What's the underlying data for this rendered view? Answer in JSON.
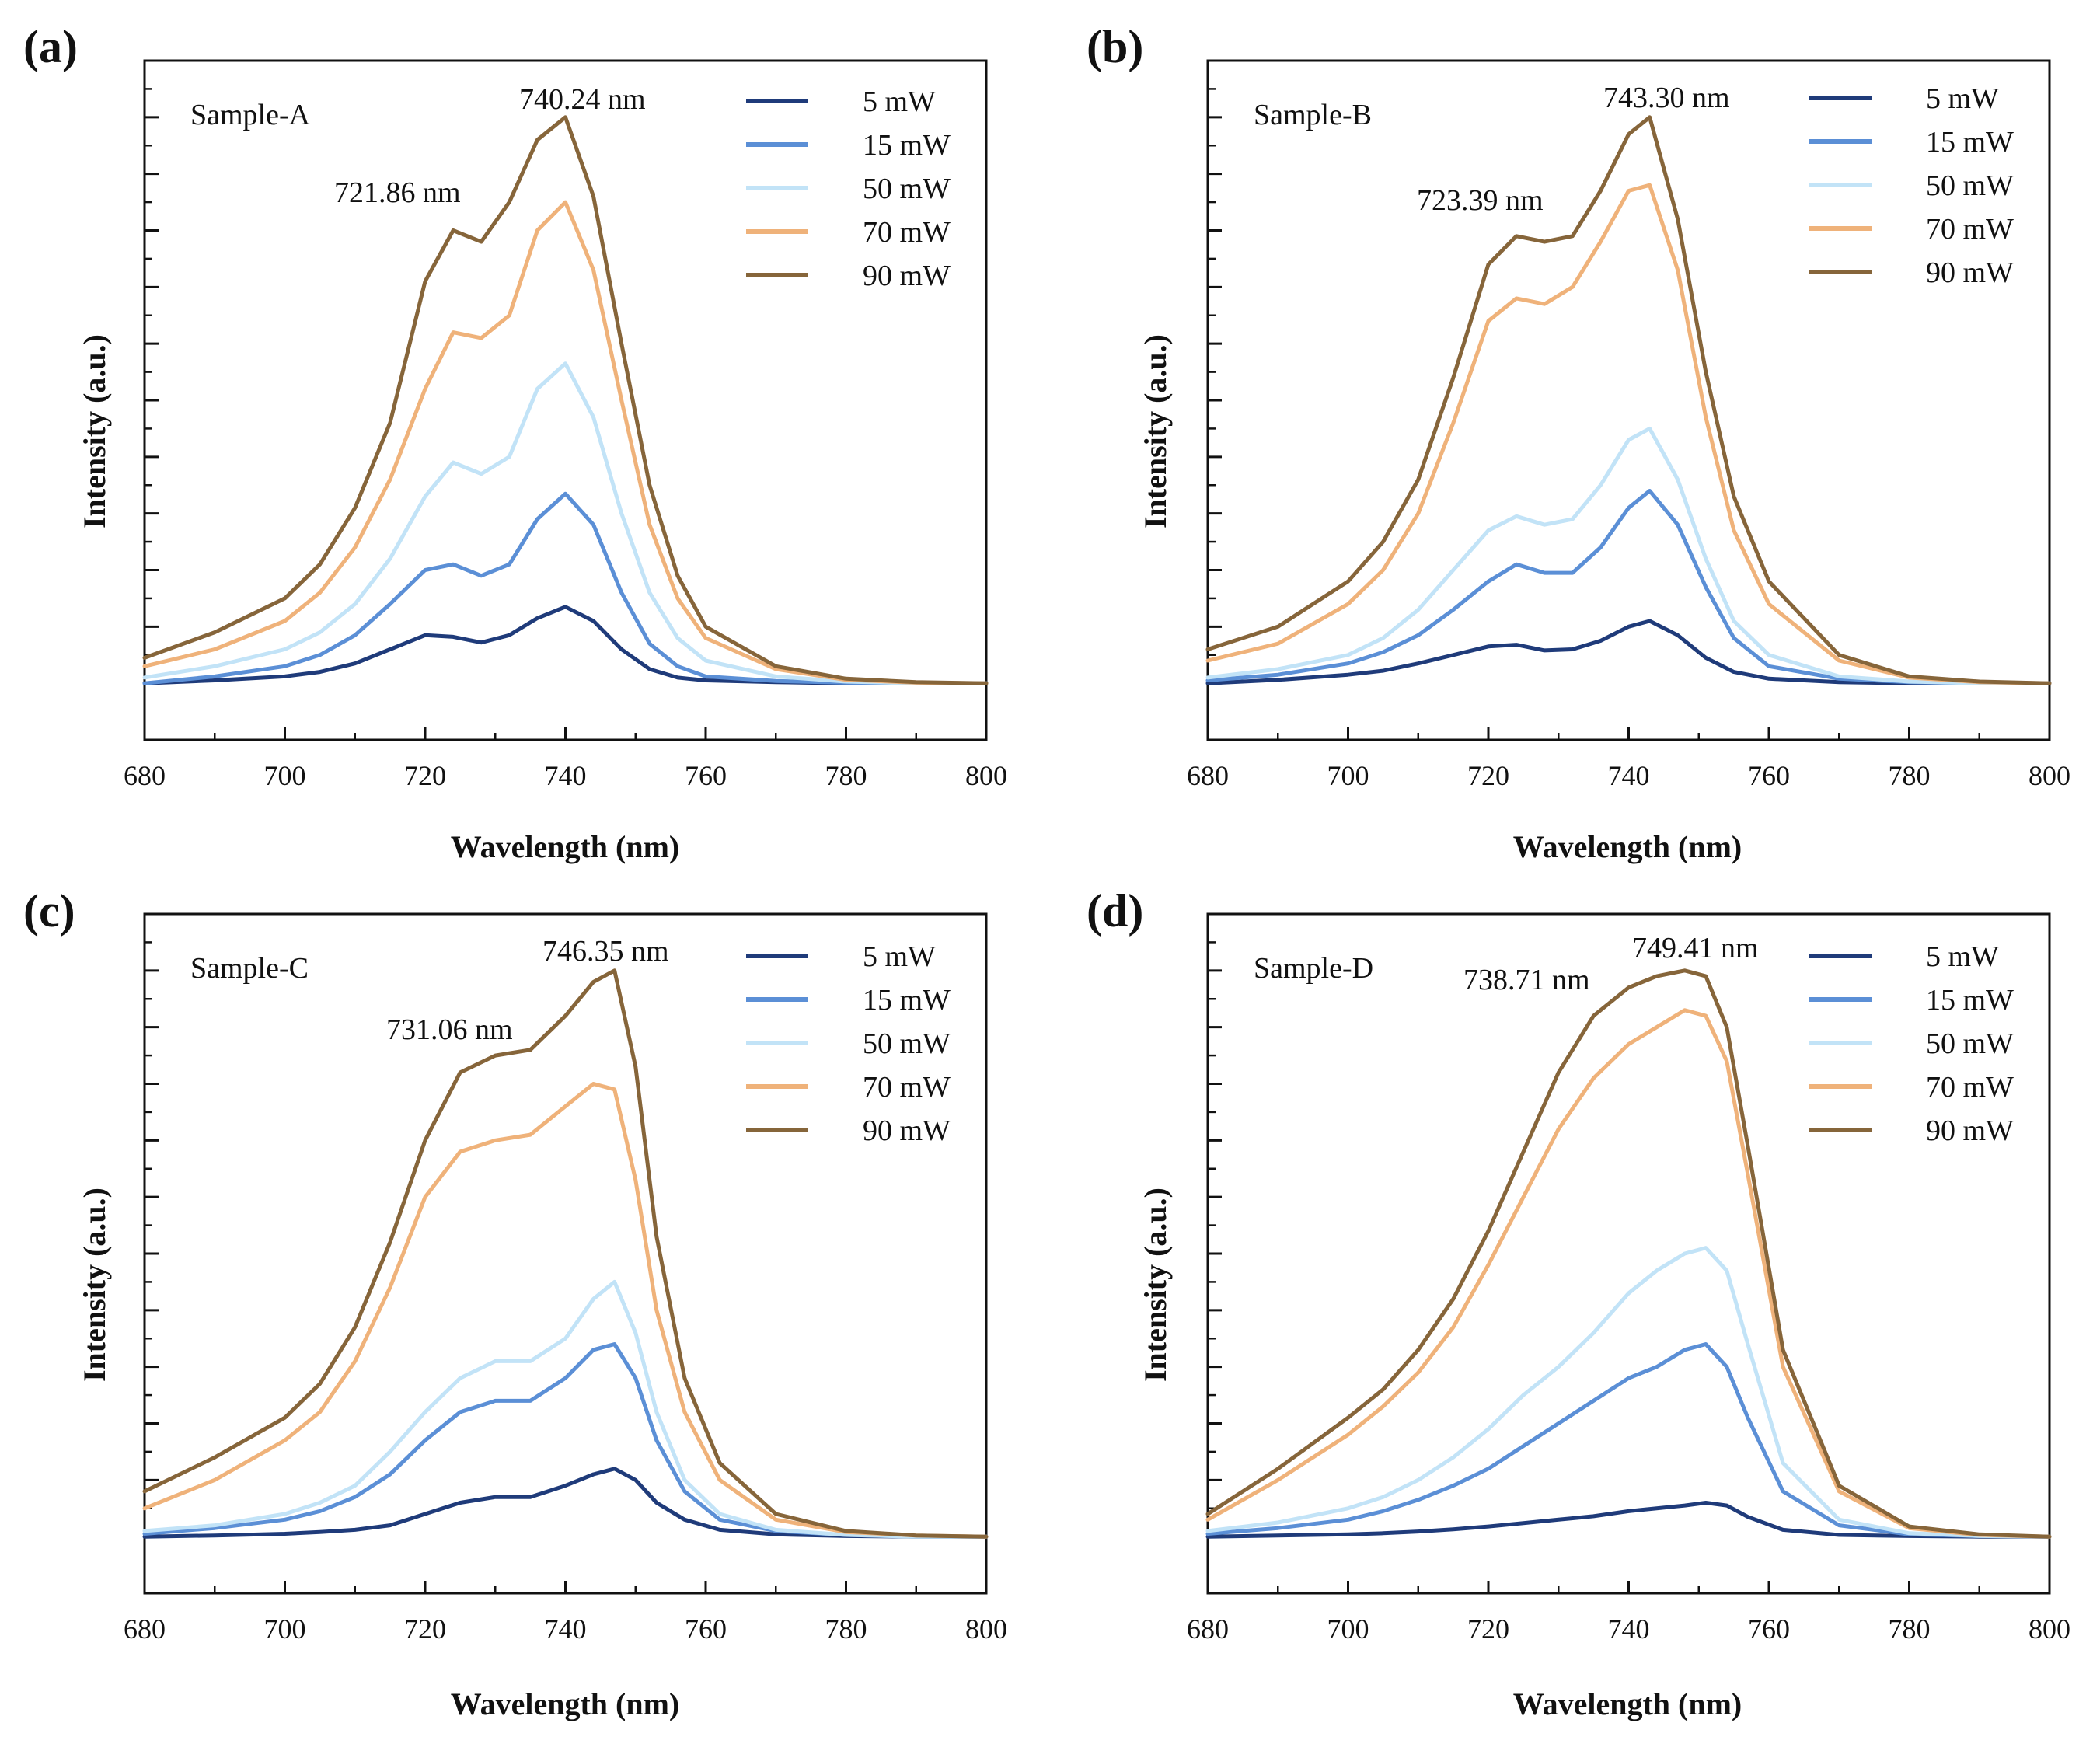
{
  "figure": {
    "colors": {
      "5 mW": "#1f3b7a",
      "15 mW": "#5b8fd6",
      "50 mW": "#c2e3f7",
      "70 mW": "#efb27a",
      "90 mW": "#86653a"
    },
    "panels": [
      {
        "label": "(a)",
        "sample": "Sample-A",
        "peak1_label": "721.86 nm",
        "peak2_label": "740.24 nm"
      },
      {
        "label": "(b)",
        "sample": "Sample-B",
        "peak1_label": "723.39 nm",
        "peak2_label": "743.30 nm"
      },
      {
        "label": "(c)",
        "sample": "Sample-C",
        "peak1_label": "731.06 nm",
        "peak2_label": "746.35 nm"
      },
      {
        "label": "(d)",
        "sample": "Sample-D",
        "peak1_label": "738.71 nm",
        "peak2_label": "749.41 nm"
      }
    ]
  },
  "chart_data": [
    {
      "type": "line",
      "title": "(a) Sample-A",
      "xlabel": "Wavelength (nm)",
      "ylabel": "Intensity (a.u.)",
      "xlim": [
        680,
        800
      ],
      "ylim": [
        -0.1,
        1.1
      ],
      "xticks": [
        680,
        700,
        720,
        740,
        760,
        780,
        800
      ],
      "legend_position": "top-right",
      "annotations": [
        "721.86 nm",
        "740.24 nm"
      ],
      "x": [
        680,
        690,
        700,
        705,
        710,
        715,
        720,
        724,
        728,
        732,
        736,
        740,
        744,
        748,
        752,
        756,
        760,
        770,
        780,
        790,
        800
      ],
      "series": [
        {
          "name": "5 mW",
          "values": [
            0.0,
            0.005,
            0.012,
            0.02,
            0.035,
            0.06,
            0.085,
            0.082,
            0.072,
            0.085,
            0.115,
            0.135,
            0.11,
            0.06,
            0.025,
            0.01,
            0.005,
            0.002,
            0.0,
            0.0,
            0.0
          ]
        },
        {
          "name": "15 mW",
          "values": [
            0.0,
            0.012,
            0.03,
            0.05,
            0.085,
            0.14,
            0.2,
            0.21,
            0.19,
            0.21,
            0.29,
            0.335,
            0.28,
            0.16,
            0.07,
            0.03,
            0.012,
            0.004,
            0.001,
            0.0,
            0.0
          ]
        },
        {
          "name": "50 mW",
          "values": [
            0.01,
            0.03,
            0.06,
            0.09,
            0.14,
            0.22,
            0.33,
            0.39,
            0.37,
            0.4,
            0.52,
            0.565,
            0.47,
            0.3,
            0.16,
            0.08,
            0.04,
            0.012,
            0.003,
            0.0,
            0.0
          ]
        },
        {
          "name": "70 mW",
          "values": [
            0.03,
            0.06,
            0.11,
            0.16,
            0.24,
            0.36,
            0.52,
            0.62,
            0.61,
            0.65,
            0.8,
            0.85,
            0.73,
            0.5,
            0.28,
            0.15,
            0.08,
            0.025,
            0.006,
            0.001,
            0.0
          ]
        },
        {
          "name": "90 mW",
          "values": [
            0.045,
            0.09,
            0.15,
            0.21,
            0.31,
            0.46,
            0.71,
            0.8,
            0.78,
            0.85,
            0.96,
            1.0,
            0.86,
            0.6,
            0.35,
            0.19,
            0.1,
            0.03,
            0.008,
            0.002,
            0.0
          ]
        }
      ]
    },
    {
      "type": "line",
      "title": "(b) Sample-B",
      "xlabel": "Wavelength (nm)",
      "ylabel": "Intensity (a.u.)",
      "xlim": [
        680,
        800
      ],
      "ylim": [
        -0.1,
        1.1
      ],
      "xticks": [
        680,
        700,
        720,
        740,
        760,
        780,
        800
      ],
      "legend_position": "top-right",
      "annotations": [
        "723.39 nm",
        "743.30 nm"
      ],
      "x": [
        680,
        690,
        700,
        705,
        710,
        715,
        720,
        724,
        728,
        732,
        736,
        740,
        743,
        747,
        751,
        755,
        760,
        770,
        780,
        790,
        800
      ],
      "series": [
        {
          "name": "5 mW",
          "values": [
            0.0,
            0.006,
            0.015,
            0.022,
            0.035,
            0.05,
            0.065,
            0.068,
            0.058,
            0.06,
            0.075,
            0.1,
            0.11,
            0.085,
            0.045,
            0.02,
            0.008,
            0.002,
            0.0,
            0.0,
            0.0
          ]
        },
        {
          "name": "15 mW",
          "values": [
            0.005,
            0.015,
            0.035,
            0.055,
            0.085,
            0.13,
            0.18,
            0.21,
            0.195,
            0.195,
            0.24,
            0.31,
            0.34,
            0.28,
            0.17,
            0.08,
            0.03,
            0.008,
            0.002,
            0.0,
            0.0
          ]
        },
        {
          "name": "50 mW",
          "values": [
            0.01,
            0.025,
            0.05,
            0.08,
            0.13,
            0.2,
            0.27,
            0.295,
            0.28,
            0.29,
            0.35,
            0.43,
            0.45,
            0.36,
            0.22,
            0.11,
            0.05,
            0.012,
            0.003,
            0.0,
            0.0
          ]
        },
        {
          "name": "70 mW",
          "values": [
            0.04,
            0.07,
            0.14,
            0.2,
            0.3,
            0.46,
            0.64,
            0.68,
            0.67,
            0.7,
            0.78,
            0.87,
            0.88,
            0.73,
            0.47,
            0.27,
            0.14,
            0.04,
            0.01,
            0.002,
            0.0
          ]
        },
        {
          "name": "90 mW",
          "values": [
            0.06,
            0.1,
            0.18,
            0.25,
            0.36,
            0.54,
            0.74,
            0.79,
            0.78,
            0.79,
            0.87,
            0.97,
            1.0,
            0.82,
            0.55,
            0.33,
            0.18,
            0.05,
            0.012,
            0.003,
            0.0
          ]
        }
      ]
    },
    {
      "type": "line",
      "title": "(c) Sample-C",
      "xlabel": "Wavelength (nm)",
      "ylabel": "Intensity (a.u.)",
      "xlim": [
        680,
        800
      ],
      "ylim": [
        -0.1,
        1.1
      ],
      "xticks": [
        680,
        700,
        720,
        740,
        760,
        780,
        800
      ],
      "legend_position": "top-right",
      "annotations": [
        "731.06 nm",
        "746.35 nm"
      ],
      "x": [
        680,
        690,
        700,
        705,
        710,
        715,
        720,
        725,
        730,
        735,
        740,
        744,
        747,
        750,
        753,
        757,
        762,
        770,
        780,
        790,
        800
      ],
      "series": [
        {
          "name": "5 mW",
          "values": [
            0.0,
            0.002,
            0.005,
            0.008,
            0.012,
            0.02,
            0.04,
            0.06,
            0.07,
            0.07,
            0.09,
            0.11,
            0.12,
            0.1,
            0.06,
            0.03,
            0.012,
            0.004,
            0.001,
            0.0,
            0.0
          ]
        },
        {
          "name": "15 mW",
          "values": [
            0.005,
            0.015,
            0.03,
            0.045,
            0.07,
            0.11,
            0.17,
            0.22,
            0.24,
            0.24,
            0.28,
            0.33,
            0.34,
            0.28,
            0.17,
            0.08,
            0.03,
            0.01,
            0.003,
            0.0,
            0.0
          ]
        },
        {
          "name": "50 mW",
          "values": [
            0.01,
            0.02,
            0.04,
            0.06,
            0.09,
            0.15,
            0.22,
            0.28,
            0.31,
            0.31,
            0.35,
            0.42,
            0.45,
            0.36,
            0.22,
            0.1,
            0.04,
            0.012,
            0.003,
            0.0,
            0.0
          ]
        },
        {
          "name": "70 mW",
          "values": [
            0.05,
            0.1,
            0.17,
            0.22,
            0.31,
            0.44,
            0.6,
            0.68,
            0.7,
            0.71,
            0.76,
            0.8,
            0.79,
            0.63,
            0.4,
            0.22,
            0.1,
            0.03,
            0.008,
            0.002,
            0.0
          ]
        },
        {
          "name": "90 mW",
          "values": [
            0.08,
            0.14,
            0.21,
            0.27,
            0.37,
            0.52,
            0.7,
            0.82,
            0.85,
            0.86,
            0.92,
            0.98,
            1.0,
            0.83,
            0.53,
            0.28,
            0.13,
            0.04,
            0.01,
            0.002,
            0.0
          ]
        }
      ]
    },
    {
      "type": "line",
      "title": "(d) Sample-D",
      "xlabel": "Wavelength (nm)",
      "ylabel": "Intensity (a.u.)",
      "xlim": [
        680,
        800
      ],
      "ylim": [
        -0.1,
        1.1
      ],
      "xticks": [
        680,
        700,
        720,
        740,
        760,
        780,
        800
      ],
      "legend_position": "top-right",
      "annotations": [
        "738.71 nm",
        "749.41 nm"
      ],
      "x": [
        680,
        690,
        700,
        705,
        710,
        715,
        720,
        725,
        730,
        735,
        740,
        744,
        748,
        751,
        754,
        757,
        762,
        770,
        780,
        790,
        800
      ],
      "series": [
        {
          "name": "5 mW",
          "values": [
            0.0,
            0.002,
            0.004,
            0.006,
            0.009,
            0.013,
            0.018,
            0.024,
            0.03,
            0.036,
            0.045,
            0.05,
            0.055,
            0.06,
            0.055,
            0.035,
            0.012,
            0.003,
            0.001,
            0.0,
            0.0
          ]
        },
        {
          "name": "15 mW",
          "values": [
            0.005,
            0.015,
            0.03,
            0.045,
            0.065,
            0.09,
            0.12,
            0.16,
            0.2,
            0.24,
            0.28,
            0.3,
            0.33,
            0.34,
            0.3,
            0.21,
            0.08,
            0.02,
            0.004,
            0.001,
            0.0
          ]
        },
        {
          "name": "50 mW",
          "values": [
            0.01,
            0.025,
            0.05,
            0.07,
            0.1,
            0.14,
            0.19,
            0.25,
            0.3,
            0.36,
            0.43,
            0.47,
            0.5,
            0.51,
            0.47,
            0.34,
            0.13,
            0.03,
            0.006,
            0.001,
            0.0
          ]
        },
        {
          "name": "70 mW",
          "values": [
            0.03,
            0.1,
            0.18,
            0.23,
            0.29,
            0.37,
            0.48,
            0.6,
            0.72,
            0.81,
            0.87,
            0.9,
            0.93,
            0.92,
            0.84,
            0.64,
            0.3,
            0.08,
            0.015,
            0.003,
            0.0
          ]
        },
        {
          "name": "90 mW",
          "values": [
            0.04,
            0.12,
            0.21,
            0.26,
            0.33,
            0.42,
            0.54,
            0.68,
            0.82,
            0.92,
            0.97,
            0.99,
            1.0,
            0.99,
            0.9,
            0.69,
            0.33,
            0.09,
            0.018,
            0.004,
            0.0
          ]
        }
      ]
    }
  ]
}
